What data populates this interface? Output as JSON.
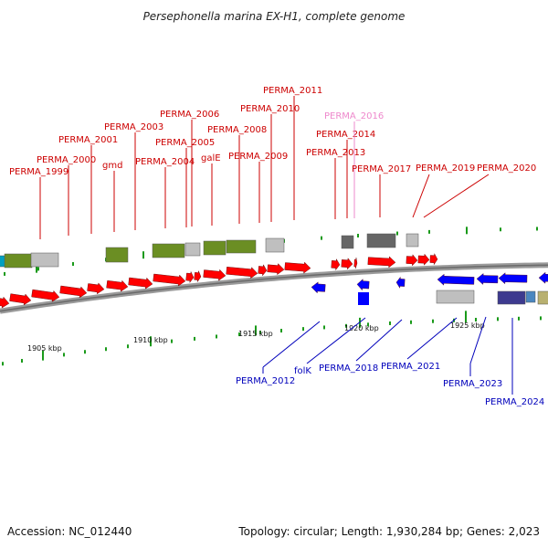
{
  "title": "Persephonella marina EX-H1, complete genome",
  "footer": {
    "accession": "Accession: NC_012440",
    "topology": "Topology: circular; Length: 1,930,284 bp; Genes: 2,023"
  },
  "colors": {
    "forward_gene": "#ff0000",
    "reverse_gene": "#0000ff",
    "forward_label": "#cc0000",
    "reverse_label": "#0000bb",
    "faint_label": "#ee88cc",
    "backbone": "#888888",
    "tick": "#1a9a1a",
    "cds_green": "#6b8e23",
    "cds_grey": "#bfbfbf",
    "cds_dark": "#666666",
    "cds_purple": "#3d3a8f",
    "cds_olive": "#b8b070",
    "cds_cyan": "#00a0c0"
  },
  "scale": {
    "ticks": [
      {
        "label": "1905 kbp"
      },
      {
        "label": "1910 kbp"
      },
      {
        "label": "1915 kbp"
      },
      {
        "label": "1920 kbp"
      },
      {
        "label": "1925 kbp"
      }
    ]
  },
  "forward_labels": [
    {
      "text": "PERMA_1999"
    },
    {
      "text": "PERMA_2000"
    },
    {
      "text": "PERMA_2001"
    },
    {
      "text": "gmd"
    },
    {
      "text": "PERMA_2003"
    },
    {
      "text": "PERMA_2004"
    },
    {
      "text": "PERMA_2005"
    },
    {
      "text": "PERMA_2006"
    },
    {
      "text": "galE"
    },
    {
      "text": "PERMA_2008"
    },
    {
      "text": "PERMA_2009"
    },
    {
      "text": "PERMA_2010"
    },
    {
      "text": "PERMA_2011"
    },
    {
      "text": "PERMA_2013"
    },
    {
      "text": "PERMA_2014"
    },
    {
      "text": "PERMA_2016",
      "faint": true
    },
    {
      "text": "PERMA_2017"
    },
    {
      "text": "PERMA_2019"
    },
    {
      "text": "PERMA_2020"
    }
  ],
  "reverse_labels": [
    {
      "text": "PERMA_2012"
    },
    {
      "text": "folK"
    },
    {
      "text": "PERMA_2018"
    },
    {
      "text": "PERMA_2021"
    },
    {
      "text": "PERMA_2023"
    },
    {
      "text": "PERMA_2024"
    }
  ]
}
